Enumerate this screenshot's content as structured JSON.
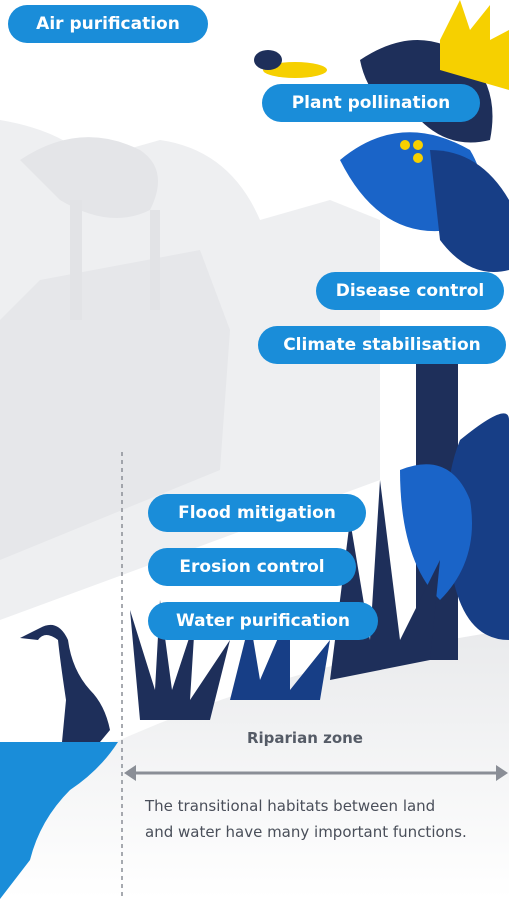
{
  "functions": [
    "Air purification",
    "Plant pollination",
    "Disease control",
    "Climate stabilisation",
    "Flood mitigation",
    "Erosion control",
    "Water purification"
  ],
  "zone_label": "Riparian zone",
  "caption": [
    "The transitional habitats between land",
    "and water have many important functions."
  ]
}
